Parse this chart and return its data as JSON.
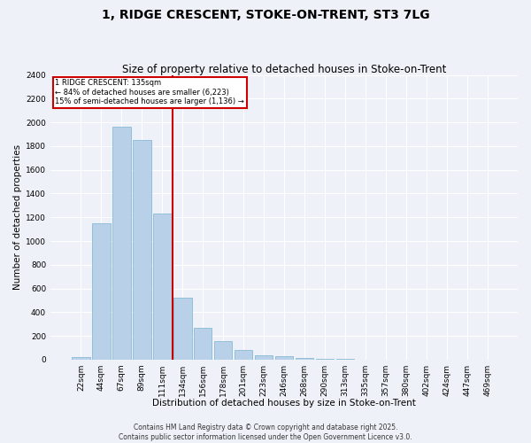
{
  "title": "1, RIDGE CRESCENT, STOKE-ON-TRENT, ST3 7LG",
  "subtitle": "Size of property relative to detached houses in Stoke-on-Trent",
  "xlabel": "Distribution of detached houses by size in Stoke-on-Trent",
  "ylabel": "Number of detached properties",
  "bins": [
    "22sqm",
    "44sqm",
    "67sqm",
    "89sqm",
    "111sqm",
    "134sqm",
    "156sqm",
    "178sqm",
    "201sqm",
    "223sqm",
    "246sqm",
    "268sqm",
    "290sqm",
    "313sqm",
    "335sqm",
    "357sqm",
    "380sqm",
    "402sqm",
    "424sqm",
    "447sqm",
    "469sqm"
  ],
  "values": [
    20,
    1150,
    1960,
    1850,
    1230,
    520,
    270,
    155,
    80,
    40,
    28,
    15,
    8,
    4,
    2,
    1,
    1,
    0,
    0,
    0,
    0
  ],
  "bar_color": "#b8d0e8",
  "bar_edge_color": "#7ab3d0",
  "vline_x_index": 5,
  "vline_color": "#cc0000",
  "annotation_title": "1 RIDGE CRESCENT: 135sqm",
  "annotation_line1": "← 84% of detached houses are smaller (6,223)",
  "annotation_line2": "15% of semi-detached houses are larger (1,136) →",
  "annotation_box_color": "#cc0000",
  "ylim": [
    0,
    2400
  ],
  "yticks": [
    0,
    200,
    400,
    600,
    800,
    1000,
    1200,
    1400,
    1600,
    1800,
    2000,
    2200,
    2400
  ],
  "footer_line1": "Contains HM Land Registry data © Crown copyright and database right 2025.",
  "footer_line2": "Contains public sector information licensed under the Open Government Licence v3.0.",
  "bg_color": "#eef2f8",
  "grid_color": "#ffffff",
  "title_fontsize": 10,
  "subtitle_fontsize": 8.5,
  "axis_label_fontsize": 7.5,
  "tick_fontsize": 6.5,
  "footer_fontsize": 5.5
}
